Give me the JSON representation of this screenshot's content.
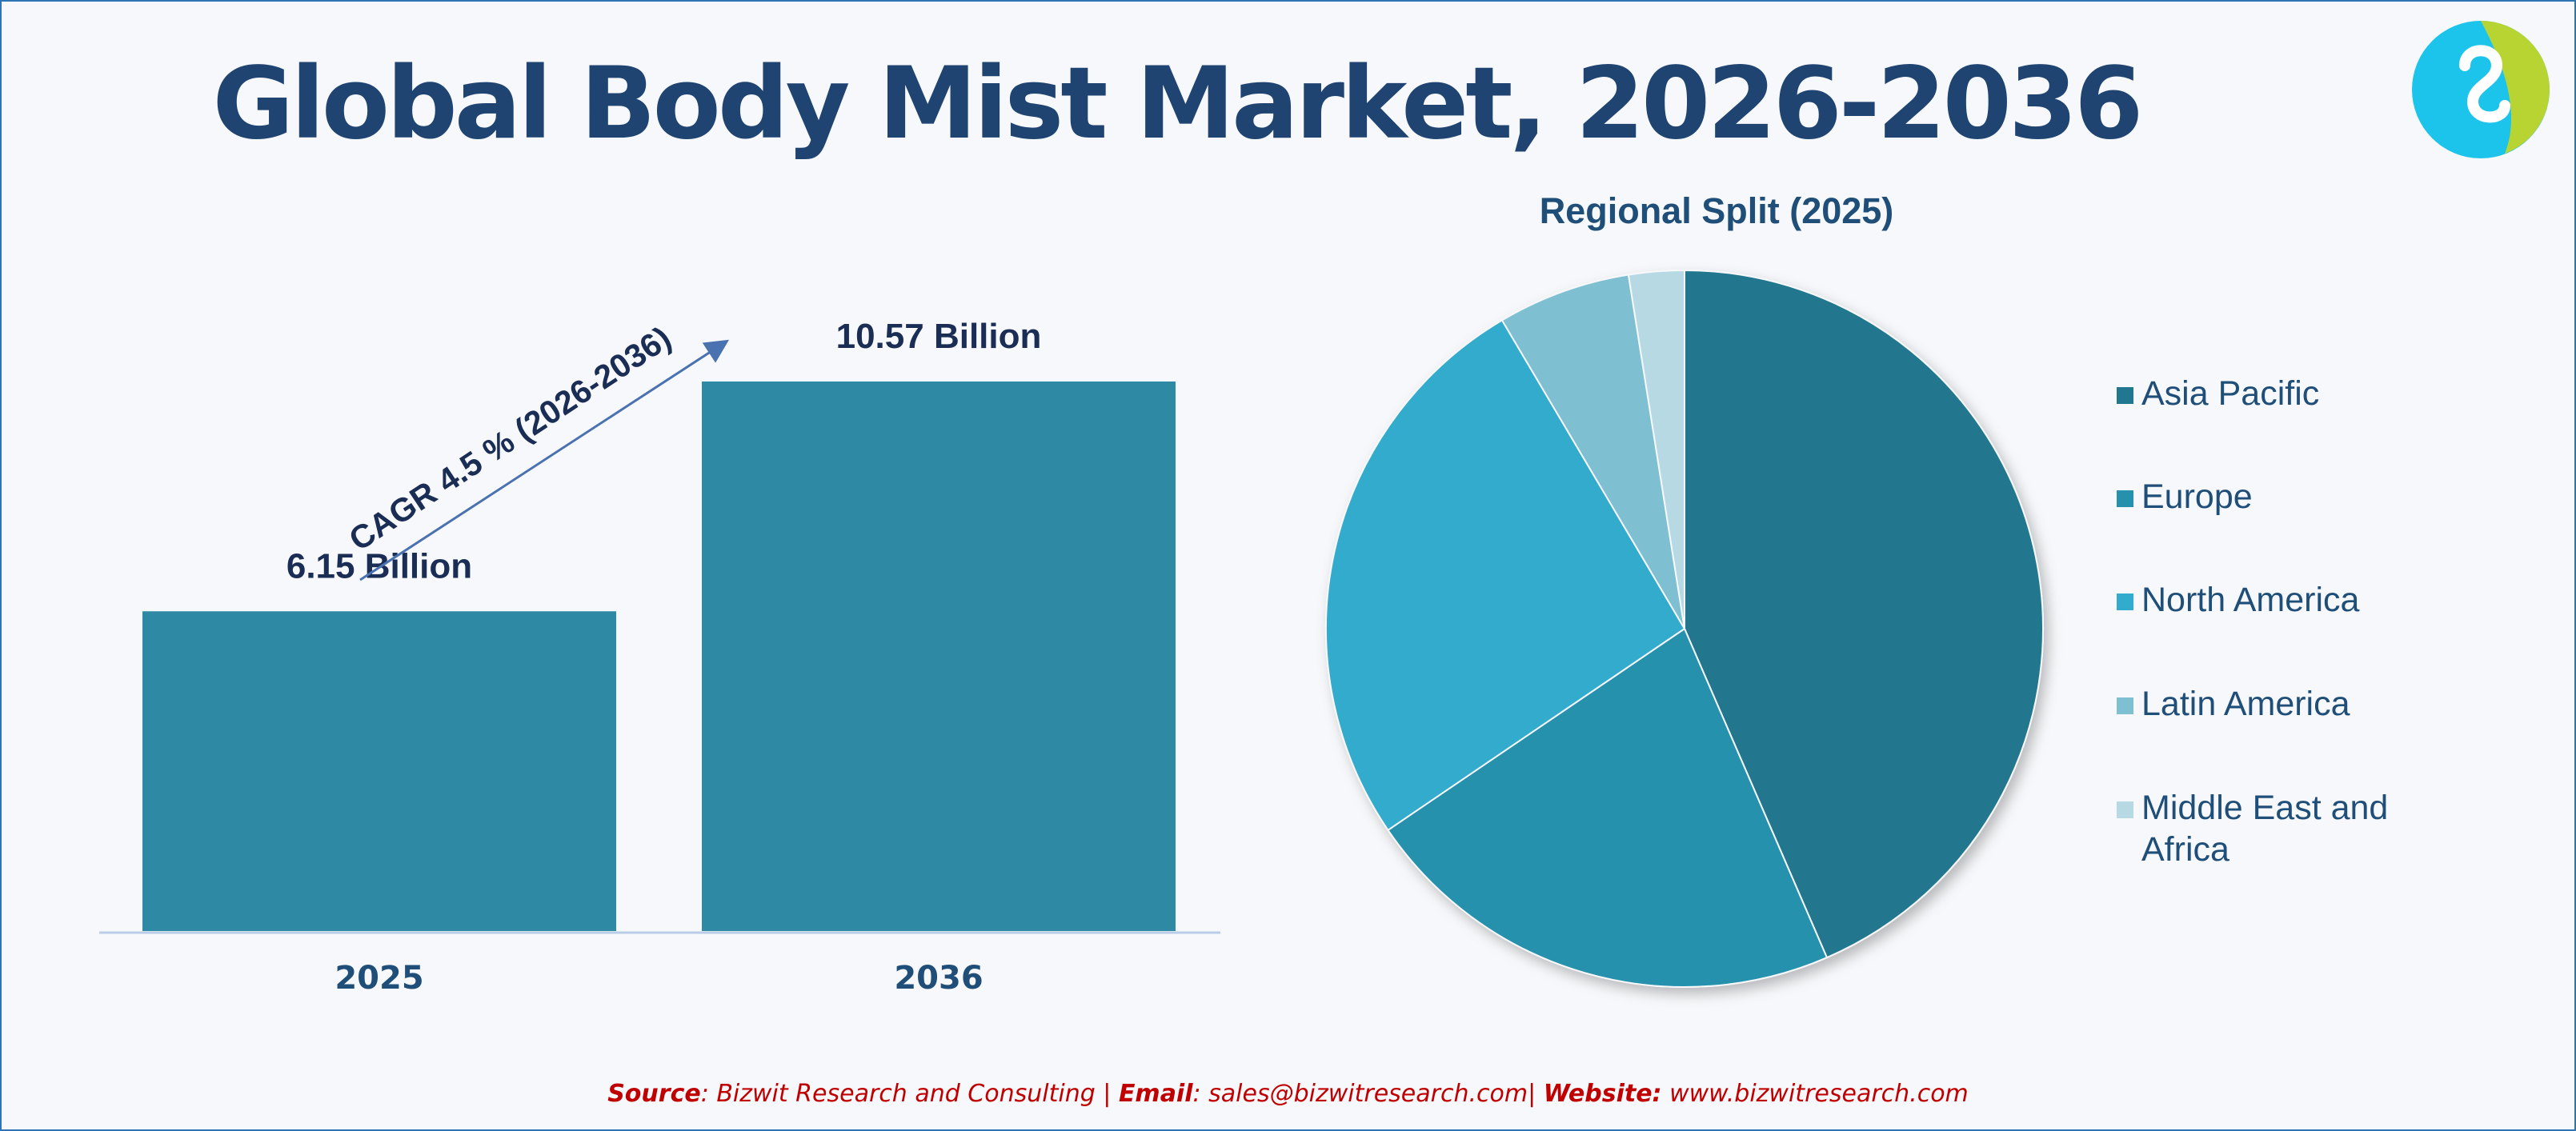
{
  "title": "Global Body Mist Market, 2026-2036",
  "logo_icon": "bizwit-logo-icon",
  "cagr_label": "CAGR 4.5 % (2026-2036)",
  "footer": {
    "source_label": "Source",
    "source_text": ": Bizwit Research and Consulting | ",
    "email_label": "Email",
    "email_text": ": sales@bizwitresearch.com| ",
    "website_label": "Website:",
    "website_text": " www.bizwitresearch.com"
  },
  "chart_data": [
    {
      "type": "bar",
      "categories": [
        "2025",
        "2036"
      ],
      "values": [
        6.15,
        10.57
      ],
      "data_labels": [
        "6.15 Billion",
        "10.57 Billion"
      ],
      "unit": "Billion",
      "ylim": [
        0,
        12
      ],
      "grid": false,
      "color": "#2e8aa4"
    },
    {
      "type": "pie",
      "title": "Regional Split (2025)",
      "legend_position": "right",
      "categories": [
        "Asia Pacific",
        "Europe",
        "North America",
        "Latin America",
        "Middle East and Africa"
      ],
      "values": [
        43.5,
        22,
        26,
        6,
        2.5
      ],
      "colors": [
        "#20778f",
        "#2691ad",
        "#33abcc",
        "#7fbfd2",
        "#b6d9e3"
      ]
    }
  ]
}
